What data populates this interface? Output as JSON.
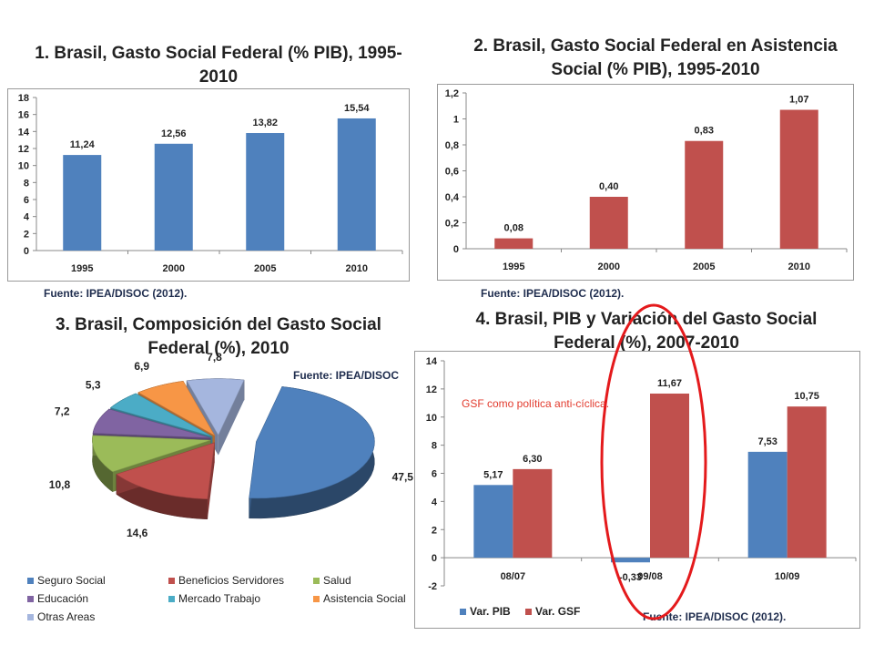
{
  "chart_data": [
    {
      "type": "bar",
      "title": "1. Brasil, Gasto Social Federal (% PIB), 1995-2010",
      "categories": [
        "1995",
        "2000",
        "2005",
        "2010"
      ],
      "values": [
        11.24,
        12.56,
        13.82,
        15.54
      ],
      "value_labels": [
        "11,24",
        "12,56",
        "13,82",
        "15,54"
      ],
      "ylim": [
        0,
        18
      ],
      "yticks": [
        "0",
        "2",
        "4",
        "6",
        "8",
        "10",
        "12",
        "14",
        "16",
        "18"
      ],
      "color": "#4f81bd",
      "grid": false,
      "source": "Fuente: IPEA/DISOC (2012)."
    },
    {
      "type": "bar",
      "title": "2. Brasil, Gasto Social Federal en Asistencia Social (% PIB), 1995-2010",
      "categories": [
        "1995",
        "2000",
        "2005",
        "2010"
      ],
      "values": [
        0.08,
        0.4,
        0.83,
        1.07
      ],
      "value_labels": [
        "0,08",
        "0,40",
        "0,83",
        "1,07"
      ],
      "ylim": [
        0,
        1.2
      ],
      "yticks": [
        "0",
        "0,2",
        "0,4",
        "0,6",
        "0,8",
        "1",
        "1,2"
      ],
      "color": "#c0504d",
      "grid": false,
      "source": "Fuente: IPEA/DISOC (2012)."
    },
    {
      "type": "pie",
      "title": "3. Brasil, Composición del Gasto Social Federal (%), 2010",
      "labels": [
        "Seguro Social",
        "Beneficios Servidores",
        "Salud",
        "Educación",
        "Mercado Trabajo",
        "Asistencia Social",
        "Otras Areas"
      ],
      "values": [
        47.5,
        14.6,
        10.8,
        7.2,
        5.3,
        6.9,
        7.8
      ],
      "value_labels": [
        "47,5",
        "14,6",
        "10,8",
        "7,2",
        "5,3",
        "6,9",
        "7,8"
      ],
      "colors": [
        "#4f81bd",
        "#c0504d",
        "#9bbb59",
        "#8064a2",
        "#4bacc6",
        "#f79646",
        "#a5b6de"
      ],
      "style": "3d-exploded",
      "legend": "bottom",
      "source": "Fuente: IPEA/DISOC"
    },
    {
      "type": "bar",
      "title": "4. Brasil, PIB y Variación del Gasto Social Federal (%), 2007-2010",
      "categories": [
        "08/07",
        "09/08",
        "10/09"
      ],
      "series": [
        {
          "name": "Var. PIB",
          "values": [
            5.17,
            -0.33,
            7.53
          ],
          "value_labels": [
            "5,17",
            "-0,33",
            "7,53"
          ],
          "color": "#4f81bd"
        },
        {
          "name": "Var. GSF",
          "values": [
            6.3,
            11.67,
            10.75
          ],
          "value_labels": [
            "6,30",
            "11,67",
            "10,75"
          ],
          "color": "#c0504d"
        }
      ],
      "ylim": [
        -2,
        14
      ],
      "yticks": [
        "-2",
        "0",
        "2",
        "4",
        "6",
        "8",
        "10",
        "12",
        "14"
      ],
      "annotation": "GSF como política anti-cíclica.",
      "highlight": "09/08",
      "legend": "bottom-left",
      "grid": false,
      "source": "Fuente: IPEA/DISOC (2012)."
    }
  ]
}
